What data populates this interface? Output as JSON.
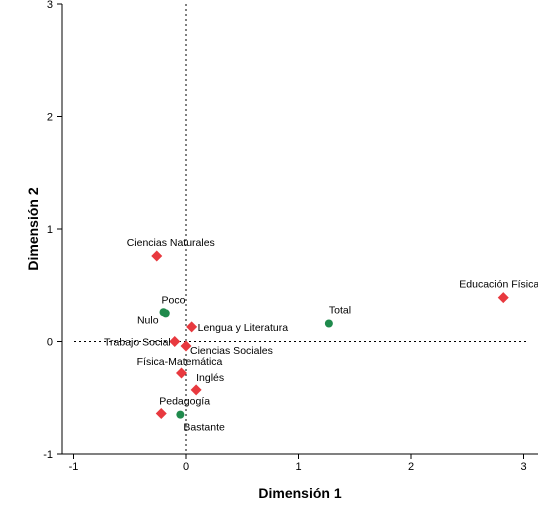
{
  "chart_data": {
    "type": "scatter",
    "xlabel": "Dimensión 1",
    "ylabel": "Dimensión 2",
    "xlim": [
      -1.1,
      3.12
    ],
    "ylim": [
      -1,
      3
    ],
    "xticks": [
      "-1",
      "0",
      "1",
      "2",
      "3"
    ],
    "yticks": [
      "-1",
      "0",
      "1",
      "2",
      "3"
    ],
    "reference_lines": {
      "x": 0,
      "y": 0,
      "style": "dotted"
    },
    "grid": false,
    "legend": "none",
    "series": [
      {
        "marker": "diamond",
        "color": "#e8393f",
        "points": [
          {
            "label": "Ciencias Naturales",
            "x": -0.26,
            "y": 0.76
          },
          {
            "label": "Educación Física",
            "x": 2.82,
            "y": 0.39
          },
          {
            "label": "Lengua y Literatura",
            "x": 0.05,
            "y": 0.13
          },
          {
            "label": "Trabajo Social",
            "x": -0.1,
            "y": 0.0
          },
          {
            "label": "Ciencias Sociales",
            "x": 0.0,
            "y": -0.04
          },
          {
            "label": "Física-Matemática",
            "x": -0.04,
            "y": -0.28
          },
          {
            "label": "Inglés",
            "x": 0.09,
            "y": -0.43
          },
          {
            "label": "Pedagogía",
            "x": -0.22,
            "y": -0.64
          }
        ]
      },
      {
        "marker": "circle",
        "color": "#1f8a4c",
        "points": [
          {
            "label": "Poco",
            "x": -0.2,
            "y": 0.26
          },
          {
            "label": "Nulo",
            "x": -0.18,
            "y": 0.25
          },
          {
            "label": "Total",
            "x": 1.27,
            "y": 0.16
          },
          {
            "label": "Bastante",
            "x": -0.05,
            "y": -0.65
          }
        ]
      }
    ]
  }
}
